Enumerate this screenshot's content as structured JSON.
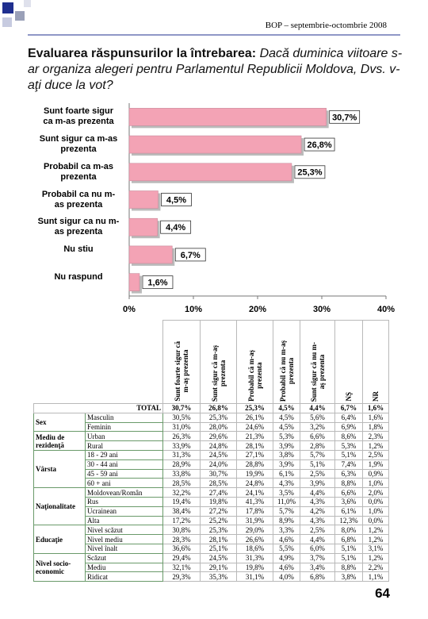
{
  "header": "BOP – septembrie-octombrie 2008",
  "title": {
    "lead": "Evaluarea răspunsurilor la întrebarea:",
    "question": "Dacă duminica viitoare s-ar organiza alegeri pentru Parlamentul Republicii Moldova, Dvs. v-aţi duce la vot?"
  },
  "chart_data": {
    "type": "hbar",
    "categories": [
      "Sunt foarte sigur\nca m-as prezenta",
      "Sunt sigur ca m-as\nprezenta",
      "Probabil ca m-as\nprezenta",
      "Probabil ca nu m-\nas prezenta",
      "Sunt sigur ca nu m-\nas prezenta",
      "Nu stiu",
      "Nu raspund"
    ],
    "values": [
      30.7,
      26.8,
      25.3,
      4.5,
      4.4,
      6.7,
      1.6
    ],
    "value_labels": [
      "30,7%",
      "26,8%",
      "25,3%",
      "4,5%",
      "4,4%",
      "6,7%",
      "1,6%"
    ],
    "color": "#f3a3b5",
    "xlim": [
      0,
      40
    ],
    "xticks": [
      {
        "value": 0,
        "label": "0%"
      },
      {
        "value": 10,
        "label": "10%"
      },
      {
        "value": 20,
        "label": "20%"
      },
      {
        "value": 30,
        "label": "30%"
      },
      {
        "value": 40,
        "label": "40%"
      }
    ],
    "grid": false
  },
  "table": {
    "columns": [
      "Sunt foarte sigur că\nm-aş prezenta",
      "Sunt sigur că m-aş\nprezenta",
      "Probabil că m-aş\nprezenta",
      "Probabil că nu m-aş\nprezenta",
      "Sunt sigur că nu m-\naş prezenta",
      "NŞ",
      "NR"
    ],
    "total_label": "TOTAL",
    "total": [
      "30,7%",
      "26,8%",
      "25,3%",
      "4,5%",
      "4,4%",
      "6,7%",
      "1,6%"
    ],
    "groups": [
      {
        "label": "Sex",
        "rows": [
          {
            "label": "Masculin",
            "values": [
              "30,5%",
              "25,3%",
              "26,1%",
              "4,5%",
              "5,6%",
              "6,4%",
              "1,6%"
            ]
          },
          {
            "label": "Feminin",
            "values": [
              "31,0%",
              "28,0%",
              "24,6%",
              "4,5%",
              "3,2%",
              "6,9%",
              "1,8%"
            ]
          }
        ]
      },
      {
        "label": "Mediu de rezidenţă",
        "rows": [
          {
            "label": "Urban",
            "values": [
              "26,3%",
              "29,6%",
              "21,3%",
              "5,3%",
              "6,6%",
              "8,6%",
              "2,3%"
            ]
          },
          {
            "label": "Rural",
            "values": [
              "33,9%",
              "24,8%",
              "28,1%",
              "3,9%",
              "2,8%",
              "5,3%",
              "1,2%"
            ]
          }
        ]
      },
      {
        "label": "Vârsta",
        "rows": [
          {
            "label": "18 - 29 ani",
            "values": [
              "31,3%",
              "24,5%",
              "27,1%",
              "3,8%",
              "5,7%",
              "5,1%",
              "2,5%"
            ]
          },
          {
            "label": "30 - 44 ani",
            "values": [
              "28,9%",
              "24,0%",
              "28,8%",
              "3,9%",
              "5,1%",
              "7,4%",
              "1,9%"
            ]
          },
          {
            "label": "45 - 59 ani",
            "values": [
              "33,8%",
              "30,7%",
              "19,9%",
              "6,1%",
              "2,5%",
              "6,3%",
              "0,9%"
            ]
          },
          {
            "label": "60 + ani",
            "values": [
              "28,5%",
              "28,5%",
              "24,8%",
              "4,3%",
              "3,9%",
              "8,8%",
              "1,0%"
            ]
          }
        ]
      },
      {
        "label": "Naţionalitate",
        "rows": [
          {
            "label": "Moldovean/Român",
            "values": [
              "32,2%",
              "27,4%",
              "24,1%",
              "3,5%",
              "4,4%",
              "6,6%",
              "2,0%"
            ]
          },
          {
            "label": "Rus",
            "values": [
              "19,4%",
              "19,8%",
              "41,3%",
              "11,0%",
              "4,3%",
              "3,6%",
              "0,0%"
            ]
          },
          {
            "label": "Ucrainean",
            "values": [
              "38,4%",
              "27,2%",
              "17,8%",
              "5,7%",
              "4,2%",
              "6,1%",
              "1,0%"
            ]
          },
          {
            "label": "Alta",
            "values": [
              "17,2%",
              "25,2%",
              "31,9%",
              "8,9%",
              "4,3%",
              "12,3%",
              "0,0%"
            ]
          }
        ]
      },
      {
        "label": "Educaţie",
        "rows": [
          {
            "label": "Nivel scăzut",
            "values": [
              "30,8%",
              "25,3%",
              "29,0%",
              "3,3%",
              "2,5%",
              "8,0%",
              "1,2%"
            ]
          },
          {
            "label": "Nivel mediu",
            "values": [
              "28,3%",
              "28,1%",
              "26,6%",
              "4,6%",
              "4,4%",
              "6,8%",
              "1,2%"
            ]
          },
          {
            "label": "Nivel înalt",
            "values": [
              "36,6%",
              "25,1%",
              "18,6%",
              "5,5%",
              "6,0%",
              "5,1%",
              "3,1%"
            ]
          }
        ]
      },
      {
        "label": "Nivel socio-economic",
        "rows": [
          {
            "label": "Scăzut",
            "values": [
              "29,4%",
              "24,5%",
              "31,3%",
              "4,9%",
              "3,7%",
              "5,1%",
              "1,2%"
            ]
          },
          {
            "label": "Mediu",
            "values": [
              "32,1%",
              "29,1%",
              "19,8%",
              "4,6%",
              "3,4%",
              "8,8%",
              "2,2%"
            ]
          },
          {
            "label": "Ridicat",
            "values": [
              "29,3%",
              "35,3%",
              "31,1%",
              "4,0%",
              "6,8%",
              "3,8%",
              "1,1%"
            ]
          }
        ]
      }
    ]
  },
  "page_number": "64"
}
